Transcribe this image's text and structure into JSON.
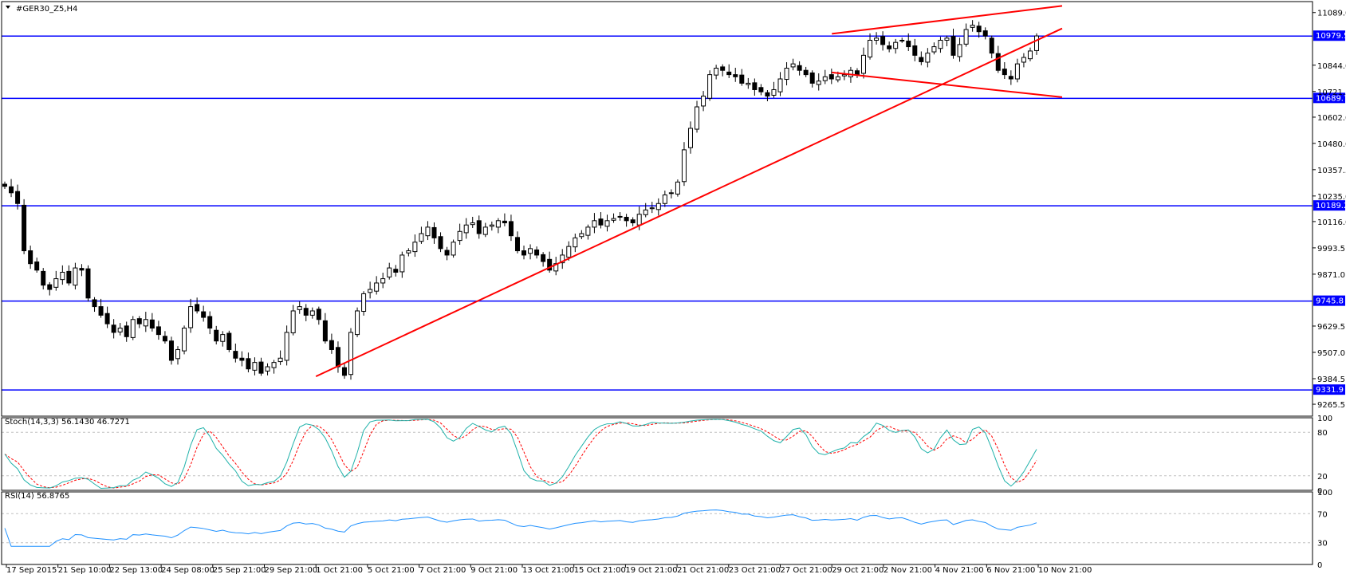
{
  "window": {
    "symbol_title": "#GER30_Z5,H4",
    "stoch_title": "Stoch(14,3,3) 56.1430 46.7271",
    "rsi_title": "RSI(14) 56.8765"
  },
  "colors": {
    "background": "#ffffff",
    "frame": "#000000",
    "hline": "#0000ff",
    "trend": "#ff0000",
    "candle": "#000000",
    "bull_fill": "#ffffff",
    "bear_fill": "#000000",
    "stoch_main": "#20b2aa",
    "stoch_signal": "#ff0000",
    "rsi": "#1e90ff",
    "level_dash": "#c0c0c0",
    "price_label_bg": "#0000ff",
    "price_label_fg": "#ffffff"
  },
  "chart_data": [
    {
      "type": "candlestick",
      "title": "#GER30_Z5,H4",
      "ylim": [
        9210,
        11140
      ],
      "price_ticks": [
        "11089.0",
        "10844.0",
        "10721.5",
        "10602.0",
        "10480.0",
        "10357.5",
        "10235.0",
        "10116.0",
        "9993.5",
        "9871.0",
        "9629.5",
        "9507.0",
        "9384.5",
        "9265.5"
      ],
      "horizontal_levels": [
        "10979.5",
        "10689.7",
        "10189.2",
        "9745.8",
        "9331.9"
      ],
      "time_labels": [
        "17 Sep 2015",
        "21 Sep 10:00",
        "22 Sep 13:00",
        "24 Sep 08:00",
        "25 Sep 21:00",
        "29 Sep 21:00",
        "1 Oct 21:00",
        "5 Oct 21:00",
        "7 Oct 21:00",
        "9 Oct 21:00",
        "13 Oct 21:00",
        "15 Oct 21:00",
        "19 Oct 21:00",
        "21 Oct 21:00",
        "23 Oct 21:00",
        "27 Oct 21:00",
        "29 Oct 21:00",
        "2 Nov 21:00",
        "4 Nov 21:00",
        "6 Nov 21:00",
        "10 Nov 21:00"
      ],
      "trendlines": [
        {
          "from": [
            "1 Oct 21:00",
            9395
          ],
          "to": [
            "10 Nov 21:00",
            11015
          ]
        },
        {
          "from": [
            "29 Oct 21:00",
            10990
          ],
          "to": [
            "10 Nov 21:00",
            11120
          ]
        },
        {
          "from": [
            "29 Oct 21:00",
            10810
          ],
          "to": [
            "10 Nov 21:00",
            10695
          ]
        }
      ],
      "close_series": [
        10280,
        10250,
        10200,
        9980,
        9920,
        9890,
        9820,
        9800,
        9850,
        9880,
        9830,
        9900,
        9890,
        9760,
        9720,
        9680,
        9640,
        9600,
        9620,
        9580,
        9660,
        9640,
        9660,
        9620,
        9590,
        9560,
        9470,
        9520,
        9620,
        9720,
        9700,
        9670,
        9620,
        9560,
        9590,
        9520,
        9480,
        9470,
        9430,
        9460,
        9410,
        9440,
        9460,
        9480,
        9600,
        9700,
        9720,
        9680,
        9700,
        9660,
        9560,
        9520,
        9440,
        9400,
        9600,
        9700,
        9780,
        9800,
        9830,
        9850,
        9900,
        9880,
        9960,
        9980,
        10020,
        10060,
        10090,
        10040,
        9990,
        9960,
        10020,
        10070,
        10100,
        10110,
        10060,
        10090,
        10100,
        10120,
        10110,
        10050,
        9980,
        9960,
        9990,
        9960,
        9930,
        9890,
        9920,
        9960,
        10000,
        10040,
        10060,
        10090,
        10120,
        10100,
        10120,
        10130,
        10140,
        10120,
        10110,
        10150,
        10170,
        10180,
        10200,
        10240,
        10250,
        10300,
        10450,
        10550,
        10650,
        10700,
        10800,
        10830,
        10820,
        10800,
        10790,
        10760,
        10760,
        10730,
        10720,
        10700,
        10730,
        10780,
        10830,
        10850,
        10820,
        10800,
        10760,
        10770,
        10790,
        10780,
        10790,
        10800,
        10820,
        10800,
        10890,
        10960,
        10970,
        10940,
        10920,
        10950,
        10960,
        10930,
        10890,
        10860,
        10900,
        10930,
        10960,
        10970,
        10890,
        10940,
        11010,
        11030,
        11000,
        10980,
        10900,
        10820,
        10800,
        10780,
        10850,
        10880,
        10910,
        10980
      ],
      "stoch_levels": [
        80,
        20
      ],
      "rsi_levels": [
        70,
        30
      ]
    }
  ]
}
